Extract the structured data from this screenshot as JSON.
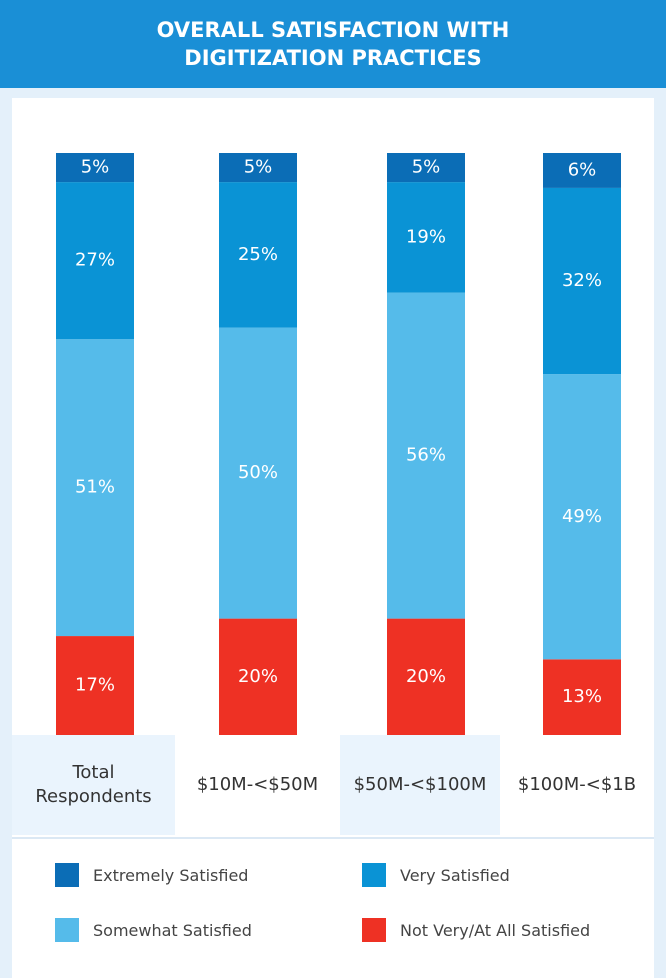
{
  "chart_data": {
    "type": "stacked-bar",
    "title": "OVERALL SATISFACTION WITH DIGITIZATION PRACTICES",
    "categories": [
      "Total Respondents",
      "$10M-<$50M",
      "$50M-<$100M",
      "$100M-<$1B"
    ],
    "ylim": [
      0,
      100
    ],
    "series": [
      {
        "name": "Extremely Satisfied",
        "color": "#0b6db6",
        "values": [
          5,
          5,
          5,
          6
        ],
        "value_labels": [
          "5%",
          "5%",
          "5%",
          "6%"
        ]
      },
      {
        "name": "Very Satisfied",
        "color": "#0a93d5",
        "values": [
          27,
          25,
          19,
          32
        ],
        "value_labels": [
          "27%",
          "25%",
          "19%",
          "32%"
        ]
      },
      {
        "name": "Somewhat Satisfied",
        "color": "#55bbea",
        "values": [
          51,
          50,
          56,
          49
        ],
        "value_labels": [
          "51%",
          "50%",
          "56%",
          "49%"
        ]
      },
      {
        "name": "Not Very/At All Satisfied",
        "color": "#ee3124",
        "values": [
          17,
          20,
          20,
          13
        ],
        "value_labels": [
          "17%",
          "20%",
          "20%",
          "13%"
        ]
      }
    ]
  }
}
